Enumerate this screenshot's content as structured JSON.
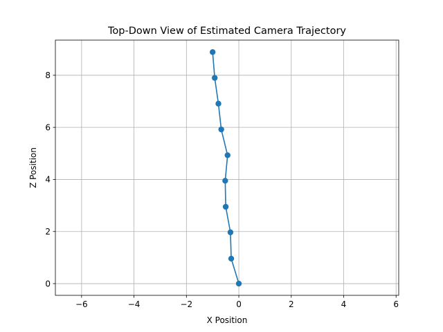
{
  "chart_data": {
    "type": "line",
    "title": "Top-Down View of Estimated Camera Trajectory",
    "xlabel": "X Position",
    "ylabel": "Z Position",
    "xlim": [
      -7.0,
      6.1
    ],
    "ylim": [
      -0.45,
      9.35
    ],
    "x_ticks": [
      -6,
      -4,
      -2,
      0,
      2,
      4,
      6
    ],
    "y_ticks": [
      0,
      2,
      4,
      6,
      8
    ],
    "grid": true,
    "series": [
      {
        "color": "#1f77b4",
        "marker": "circle",
        "points": [
          {
            "x": 0.0,
            "y": 0.0
          },
          {
            "x": -0.29,
            "y": 0.96
          },
          {
            "x": -0.32,
            "y": 1.97
          },
          {
            "x": -0.5,
            "y": 2.95
          },
          {
            "x": -0.52,
            "y": 3.95
          },
          {
            "x": -0.43,
            "y": 4.93
          },
          {
            "x": -0.67,
            "y": 5.92
          },
          {
            "x": -0.78,
            "y": 6.91
          },
          {
            "x": -0.92,
            "y": 7.9
          },
          {
            "x": -1.0,
            "y": 8.89
          }
        ]
      }
    ]
  }
}
